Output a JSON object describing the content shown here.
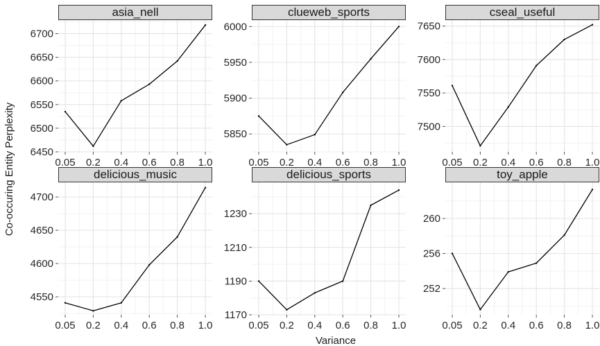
{
  "chart_data": {
    "type": "line",
    "xlabel": "Variance",
    "ylabel": "Co-occuring Entity Perplexity",
    "x_categories": [
      "0.05",
      "0.2",
      "0.4",
      "0.6",
      "0.8",
      "1.0"
    ],
    "grid": true,
    "colors": {
      "panel_bg": "#ffffff",
      "grid_major": "#e6e6e6",
      "grid_minor": "#f2f2f2",
      "strip_bg": "#d9d9d9",
      "strip_border": "#333333",
      "line": "#000000"
    },
    "panels": [
      {
        "name": "asia_nell",
        "values": [
          6535,
          6462,
          6558,
          6593,
          6642,
          6718
        ],
        "ylim": [
          6450,
          6730
        ],
        "yticks": [
          6450,
          6500,
          6550,
          6600,
          6650,
          6700
        ]
      },
      {
        "name": "clueweb_sports",
        "values": [
          5875,
          5835,
          5849,
          5908,
          5955,
          6000
        ],
        "ylim": [
          5825,
          6010
        ],
        "yticks": [
          5850,
          5900,
          5950,
          6000
        ]
      },
      {
        "name": "cseal_useful",
        "values": [
          7561,
          7471,
          7529,
          7591,
          7630,
          7652
        ],
        "ylim": [
          7462,
          7660
        ],
        "yticks": [
          7500,
          7550,
          7600,
          7650
        ]
      },
      {
        "name": "delicious_music",
        "values": [
          4541,
          4529,
          4541,
          4598,
          4640,
          4714
        ],
        "ylim": [
          4523,
          4723
        ],
        "yticks": [
          4550,
          4600,
          4650,
          4700
        ]
      },
      {
        "name": "delicious_sports",
        "values": [
          1190,
          1173,
          1183,
          1190,
          1235,
          1244
        ],
        "ylim": [
          1170,
          1249
        ],
        "yticks": [
          1170,
          1190,
          1210,
          1230
        ]
      },
      {
        "name": "toy_apple",
        "values": [
          256,
          249.6,
          253.9,
          254.9,
          258.1,
          263.3
        ],
        "ylim": [
          249,
          264.2
        ],
        "yticks": [
          252,
          256,
          260
        ]
      }
    ]
  }
}
